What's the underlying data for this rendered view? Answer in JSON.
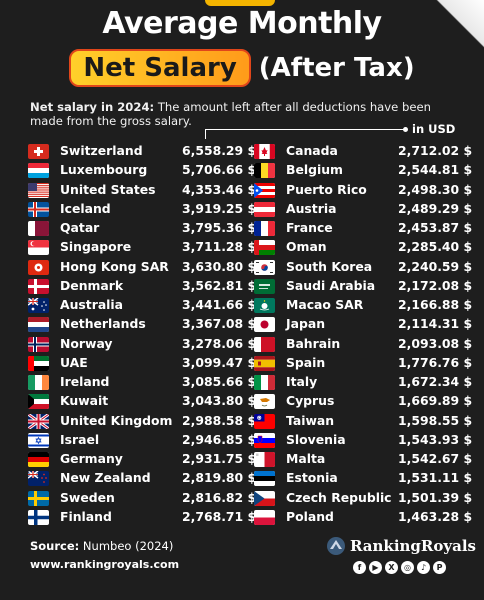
{
  "title_line1": "Average Monthly",
  "title_pill": "Net Salary",
  "title_line2": "(After Tax)",
  "desc_bold": "Net salary in 2024:",
  "desc_rest": " The amount left after all deductions have been made from the gross salary.",
  "unit": "in USD",
  "left": [
    {
      "name": "Switzerland",
      "value": "6,558.29 $",
      "flag": "ch"
    },
    {
      "name": "Luxembourg",
      "value": "5,706.66 $",
      "flag": "lu"
    },
    {
      "name": "United States",
      "value": "4,353.46 $",
      "flag": "us"
    },
    {
      "name": "Iceland",
      "value": "3,919.25 $",
      "flag": "is"
    },
    {
      "name": "Qatar",
      "value": "3,795.36 $",
      "flag": "qa"
    },
    {
      "name": "Singapore",
      "value": "3,711.28 $",
      "flag": "sg"
    },
    {
      "name": "Hong Kong SAR",
      "value": "3,630.80 $",
      "flag": "hk"
    },
    {
      "name": "Denmark",
      "value": "3,562.81 $",
      "flag": "dk"
    },
    {
      "name": "Australia",
      "value": "3,441.66 $",
      "flag": "au"
    },
    {
      "name": "Netherlands",
      "value": "3,367.08 $",
      "flag": "nl"
    },
    {
      "name": "Norway",
      "value": "3,278.06 $",
      "flag": "no"
    },
    {
      "name": "UAE",
      "value": "3,099.47 $",
      "flag": "ae"
    },
    {
      "name": "Ireland",
      "value": "3,085.66 $",
      "flag": "ie"
    },
    {
      "name": "Kuwait",
      "value": "3,043.80 $",
      "flag": "kw"
    },
    {
      "name": "United Kingdom",
      "value": "2,988.58 $",
      "flag": "gb"
    },
    {
      "name": "Israel",
      "value": "2,946.85 $",
      "flag": "il"
    },
    {
      "name": "Germany",
      "value": "2,931.75 $",
      "flag": "de"
    },
    {
      "name": "New Zealand",
      "value": "2,819.80 $",
      "flag": "nz"
    },
    {
      "name": "Sweden",
      "value": "2,816.82 $",
      "flag": "se"
    },
    {
      "name": "Finland",
      "value": "2,768.71 $",
      "flag": "fi"
    }
  ],
  "right": [
    {
      "name": "Canada",
      "value": "2,712.02 $",
      "flag": "ca"
    },
    {
      "name": "Belgium",
      "value": "2,544.81 $",
      "flag": "be"
    },
    {
      "name": "Puerto Rico",
      "value": "2,498.30 $",
      "flag": "pr"
    },
    {
      "name": "Austria",
      "value": "2,489.29 $",
      "flag": "at"
    },
    {
      "name": "France",
      "value": "2,453.87 $",
      "flag": "fr"
    },
    {
      "name": "Oman",
      "value": "2,285.40 $",
      "flag": "om"
    },
    {
      "name": "South Korea",
      "value": "2,240.59 $",
      "flag": "kr"
    },
    {
      "name": "Saudi Arabia",
      "value": "2,172.08 $",
      "flag": "sa"
    },
    {
      "name": "Macao SAR",
      "value": "2,166.88 $",
      "flag": "mo"
    },
    {
      "name": "Japan",
      "value": "2,114.31 $",
      "flag": "jp"
    },
    {
      "name": "Bahrain",
      "value": "2,093.08 $",
      "flag": "bh"
    },
    {
      "name": "Spain",
      "value": "1,776.76 $",
      "flag": "es"
    },
    {
      "name": "Italy",
      "value": "1,672.34 $",
      "flag": "it"
    },
    {
      "name": "Cyprus",
      "value": "1,669.89 $",
      "flag": "cy"
    },
    {
      "name": "Taiwan",
      "value": "1,598.55 $",
      "flag": "tw"
    },
    {
      "name": "Slovenia",
      "value": "1,543.93 $",
      "flag": "si"
    },
    {
      "name": "Malta",
      "value": "1,542.67 $",
      "flag": "mt"
    },
    {
      "name": "Estonia",
      "value": "1,531.11 $",
      "flag": "ee"
    },
    {
      "name": "Czech Republic",
      "value": "1,501.39 $",
      "flag": "cz"
    },
    {
      "name": "Poland",
      "value": "1,463.28 $",
      "flag": "pl"
    }
  ],
  "source_label": "Source:",
  "source_value": "Numbeo (2024)",
  "website": "www.rankingroyals.com",
  "brand": "RankingRoyals",
  "socials": [
    "facebook-icon",
    "youtube-icon",
    "x-icon",
    "instagram-icon",
    "tiktok-icon",
    "pinterest-icon"
  ]
}
